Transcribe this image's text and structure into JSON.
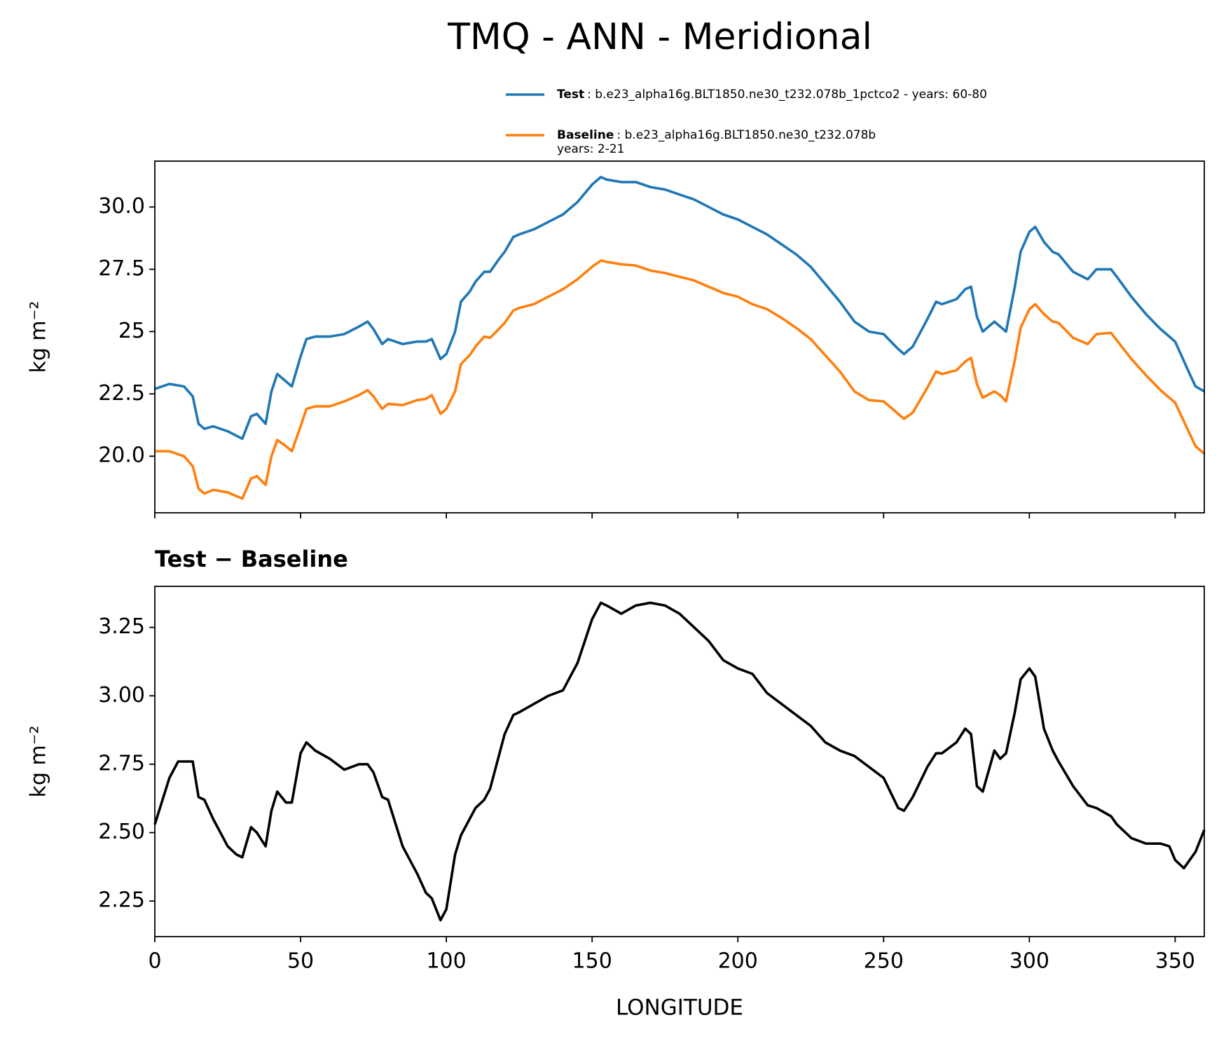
{
  "title": "TMQ - ANN - Meridional",
  "chart_data": [
    {
      "type": "line",
      "ylabel": "kg m⁻²",
      "xlim": [
        0,
        360
      ],
      "xticks": [
        0,
        50,
        100,
        150,
        200,
        250,
        300,
        350
      ],
      "ylim": [
        17.73,
        31.84
      ],
      "yticks": [
        {
          "value": 20,
          "label": "20.0"
        },
        22.5,
        25,
        27.5,
        {
          "value": 30,
          "label": "30.0"
        }
      ],
      "x": [
        0,
        5,
        10,
        13,
        15,
        17,
        20,
        25,
        30,
        33,
        35,
        38,
        40,
        42,
        45,
        47,
        50,
        52,
        55,
        60,
        65,
        70,
        73,
        75,
        78,
        80,
        85,
        90,
        93,
        95,
        98,
        100,
        103,
        105,
        108,
        110,
        113,
        115,
        118,
        120,
        123,
        125,
        130,
        135,
        140,
        145,
        150,
        153,
        155,
        160,
        165,
        170,
        175,
        180,
        185,
        190,
        195,
        200,
        205,
        210,
        215,
        220,
        225,
        230,
        235,
        240,
        245,
        250,
        255,
        257,
        260,
        265,
        268,
        270,
        275,
        278,
        280,
        282,
        284,
        288,
        290,
        292,
        295,
        297,
        300,
        302,
        305,
        308,
        310,
        315,
        320,
        323,
        328,
        330,
        335,
        340,
        345,
        350,
        355,
        357,
        360
      ],
      "series": [
        {
          "name": "Test",
          "description": [
            ": b.e23_alpha16g.BLT1850.ne30_t232.078b_1pctco2 - years: 60-80"
          ],
          "color": "#1f77b4",
          "values": [
            22.7,
            22.9,
            22.8,
            22.4,
            21.3,
            21.1,
            21.2,
            21.0,
            20.7,
            21.6,
            21.7,
            21.3,
            22.6,
            23.3,
            23.0,
            22.8,
            24.0,
            24.7,
            24.8,
            24.8,
            24.9,
            25.2,
            25.4,
            25.1,
            24.5,
            24.7,
            24.5,
            24.6,
            24.6,
            24.7,
            23.9,
            24.1,
            25.0,
            26.2,
            26.6,
            27.0,
            27.4,
            27.4,
            27.9,
            28.2,
            28.8,
            28.9,
            29.1,
            29.4,
            29.7,
            30.2,
            30.9,
            31.2,
            31.1,
            31.0,
            31.0,
            30.8,
            30.7,
            30.5,
            30.3,
            30.0,
            29.7,
            29.5,
            29.2,
            28.9,
            28.5,
            28.1,
            27.6,
            26.9,
            26.2,
            25.4,
            25.0,
            24.9,
            24.3,
            24.1,
            24.4,
            25.5,
            26.2,
            26.1,
            26.3,
            26.7,
            26.8,
            25.6,
            25.0,
            25.4,
            25.2,
            25.0,
            26.8,
            28.2,
            29.0,
            29.2,
            28.6,
            28.2,
            28.1,
            27.4,
            27.1,
            27.5,
            27.5,
            27.2,
            26.4,
            25.7,
            25.1,
            24.6,
            23.3,
            22.8,
            22.6
          ]
        },
        {
          "name": "Baseline",
          "description": [
            ": b.e23_alpha16g.BLT1850.ne30_t232.078b",
            "years: 2-21"
          ],
          "color": "#ff7f0e",
          "values": [
            20.2,
            20.2,
            20.0,
            19.6,
            18.7,
            18.5,
            18.65,
            18.55,
            18.3,
            19.1,
            19.2,
            18.85,
            20.0,
            20.65,
            20.4,
            20.2,
            21.2,
            21.9,
            22.0,
            22.0,
            22.2,
            22.45,
            22.65,
            22.4,
            21.9,
            22.1,
            22.05,
            22.25,
            22.3,
            22.45,
            21.7,
            21.9,
            22.6,
            23.7,
            24.05,
            24.4,
            24.8,
            24.75,
            25.1,
            25.35,
            25.85,
            25.95,
            26.1,
            26.4,
            26.7,
            27.1,
            27.6,
            27.85,
            27.8,
            27.7,
            27.65,
            27.45,
            27.35,
            27.2,
            27.05,
            26.8,
            26.55,
            26.4,
            26.1,
            25.9,
            25.55,
            25.15,
            24.7,
            24.05,
            23.4,
            22.6,
            22.25,
            22.2,
            21.7,
            21.5,
            21.75,
            22.75,
            23.4,
            23.3,
            23.45,
            23.8,
            23.95,
            22.9,
            22.35,
            22.6,
            22.45,
            22.2,
            23.85,
            25.15,
            25.9,
            26.1,
            25.7,
            25.4,
            25.35,
            24.75,
            24.5,
            24.9,
            24.95,
            24.65,
            23.9,
            23.25,
            22.65,
            22.15,
            20.9,
            20.4,
            20.1
          ]
        }
      ]
    },
    {
      "type": "line",
      "title": "Test − Baseline",
      "xlabel": "LONGITUDE",
      "ylabel": "kg m⁻²",
      "xlim": [
        0,
        360
      ],
      "xticks": [
        0,
        50,
        100,
        150,
        200,
        250,
        300,
        350
      ],
      "ylim": [
        2.12,
        3.4
      ],
      "yticks": [
        2.25,
        {
          "value": 2.5,
          "label": "2.50"
        },
        2.75,
        {
          "value": 3,
          "label": "3.00"
        },
        3.25
      ],
      "x": [
        0,
        5,
        8,
        13,
        15,
        17,
        20,
        25,
        28,
        30,
        33,
        35,
        38,
        40,
        42,
        45,
        47,
        50,
        52,
        55,
        60,
        65,
        70,
        73,
        75,
        78,
        80,
        85,
        90,
        93,
        95,
        98,
        100,
        103,
        105,
        108,
        110,
        113,
        115,
        118,
        120,
        123,
        125,
        130,
        135,
        140,
        145,
        150,
        153,
        155,
        160,
        165,
        170,
        175,
        180,
        185,
        190,
        195,
        200,
        205,
        210,
        215,
        220,
        225,
        230,
        235,
        240,
        245,
        250,
        255,
        257,
        260,
        265,
        268,
        270,
        275,
        278,
        280,
        282,
        284,
        288,
        290,
        292,
        295,
        297,
        300,
        302,
        305,
        308,
        310,
        315,
        320,
        323,
        328,
        330,
        335,
        340,
        345,
        348,
        350,
        353,
        357,
        360
      ],
      "series": [
        {
          "color": "#000000",
          "values": [
            2.53,
            2.7,
            2.76,
            2.76,
            2.63,
            2.62,
            2.55,
            2.45,
            2.42,
            2.41,
            2.52,
            2.5,
            2.45,
            2.58,
            2.65,
            2.61,
            2.61,
            2.79,
            2.83,
            2.8,
            2.77,
            2.73,
            2.75,
            2.75,
            2.72,
            2.63,
            2.62,
            2.45,
            2.35,
            2.28,
            2.26,
            2.18,
            2.22,
            2.42,
            2.49,
            2.55,
            2.59,
            2.62,
            2.66,
            2.78,
            2.86,
            2.93,
            2.94,
            2.97,
            3.0,
            3.02,
            3.12,
            3.28,
            3.34,
            3.33,
            3.3,
            3.33,
            3.34,
            3.33,
            3.3,
            3.25,
            3.2,
            3.13,
            3.1,
            3.08,
            3.01,
            2.97,
            2.93,
            2.89,
            2.83,
            2.8,
            2.78,
            2.74,
            2.7,
            2.59,
            2.58,
            2.63,
            2.74,
            2.79,
            2.79,
            2.83,
            2.88,
            2.86,
            2.67,
            2.65,
            2.8,
            2.77,
            2.79,
            2.94,
            3.06,
            3.1,
            3.07,
            2.88,
            2.8,
            2.76,
            2.67,
            2.6,
            2.59,
            2.56,
            2.53,
            2.48,
            2.46,
            2.46,
            2.45,
            2.4,
            2.37,
            2.43,
            2.51
          ]
        }
      ]
    }
  ]
}
